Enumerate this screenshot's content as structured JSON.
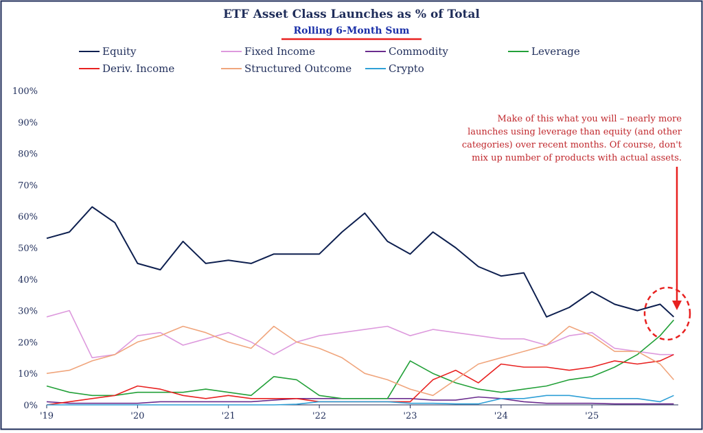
{
  "chart_data": {
    "type": "line",
    "title": "ETF Asset Class Launches as % of Total",
    "subtitle": "Rolling 6-Month Sum",
    "annotation": [
      "Make of this what you will – nearly more",
      "launches using leverage than equity (and other",
      "categories) over recent months. Of course, don't",
      "mix up number of products with actual assets."
    ],
    "x": [
      2019.0,
      2019.25,
      2019.5,
      2019.75,
      2020.0,
      2020.25,
      2020.5,
      2020.75,
      2021.0,
      2021.25,
      2021.5,
      2021.75,
      2022.0,
      2022.25,
      2022.5,
      2022.75,
      2023.0,
      2023.25,
      2023.5,
      2023.75,
      2024.0,
      2024.25,
      2024.5,
      2024.75,
      2025.0,
      2025.25,
      2025.5,
      2025.75,
      2025.9
    ],
    "xlim": [
      2019.0,
      2025.95
    ],
    "xticks": [
      {
        "value": 2019,
        "label": "'19"
      },
      {
        "value": 2020,
        "label": "'20"
      },
      {
        "value": 2021,
        "label": "'21"
      },
      {
        "value": 2022,
        "label": "'22"
      },
      {
        "value": 2023,
        "label": "'23"
      },
      {
        "value": 2024,
        "label": "'24"
      },
      {
        "value": 2025,
        "label": "'25"
      }
    ],
    "ylim": [
      0,
      100
    ],
    "yticks": [
      {
        "value": 0,
        "label": "0%"
      },
      {
        "value": 10,
        "label": "10%"
      },
      {
        "value": 20,
        "label": "20%"
      },
      {
        "value": 30,
        "label": "30%"
      },
      {
        "value": 40,
        "label": "40%"
      },
      {
        "value": 50,
        "label": "50%"
      },
      {
        "value": 60,
        "label": "60%"
      },
      {
        "value": 70,
        "label": "70%"
      },
      {
        "value": 80,
        "label": "80%"
      },
      {
        "value": 90,
        "label": "90%"
      },
      {
        "value": 100,
        "label": "100%"
      }
    ],
    "series": [
      {
        "name": "Equity",
        "color": "#0d1f4f",
        "values": [
          53,
          55,
          63,
          58,
          45,
          43,
          52,
          45,
          46,
          45,
          48,
          48,
          48,
          55,
          61,
          52,
          48,
          55,
          50,
          44,
          41,
          42,
          28,
          31,
          36,
          32,
          30,
          32,
          28
        ]
      },
      {
        "name": "Fixed Income",
        "color": "#dd99dd",
        "values": [
          28,
          30,
          15,
          16,
          22,
          23,
          19,
          21,
          23,
          20,
          16,
          20,
          22,
          23,
          24,
          25,
          22,
          24,
          23,
          22,
          21,
          21,
          19,
          22,
          23,
          18,
          17,
          16,
          16
        ]
      },
      {
        "name": "Commodity",
        "color": "#6a2c8e",
        "values": [
          1,
          0.5,
          0.5,
          0.5,
          0.5,
          1,
          1,
          1,
          1,
          1,
          1.5,
          2,
          2,
          2,
          2,
          2,
          2,
          1.5,
          1.5,
          2.5,
          2,
          1,
          0.5,
          0.5,
          0.5,
          0.3,
          0.3,
          0.3,
          0.3
        ]
      },
      {
        "name": "Leverage",
        "color": "#22a038",
        "values": [
          6,
          4,
          3,
          3,
          4,
          4,
          4,
          5,
          4,
          3,
          9,
          8,
          3,
          2,
          2,
          2,
          14,
          10,
          7,
          5,
          4,
          5,
          6,
          8,
          9,
          12,
          16,
          22,
          27
        ]
      },
      {
        "name": "Deriv. Income",
        "color": "#e8201f",
        "values": [
          0,
          1,
          2,
          3,
          6,
          5,
          3,
          2,
          3,
          2,
          2,
          2,
          1,
          1,
          1,
          1,
          1,
          8,
          11,
          7,
          13,
          12,
          12,
          11,
          12,
          14,
          13,
          14,
          16
        ]
      },
      {
        "name": "Structured Outcome",
        "color": "#f0a57c",
        "values": [
          10,
          11,
          14,
          16,
          20,
          22,
          25,
          23,
          20,
          18,
          25,
          20,
          18,
          15,
          10,
          8,
          5,
          3,
          8,
          13,
          15,
          17,
          19,
          25,
          22,
          17,
          17,
          13,
          8
        ]
      },
      {
        "name": "Crypto",
        "color": "#2e9fd6",
        "values": [
          0,
          0,
          0,
          0,
          0,
          0,
          0,
          0,
          0,
          0,
          0,
          0.2,
          1,
          1,
          1,
          1,
          0.5,
          0.5,
          0.3,
          0.3,
          2,
          2,
          3,
          3,
          2,
          2,
          2,
          1,
          3
        ]
      }
    ]
  }
}
